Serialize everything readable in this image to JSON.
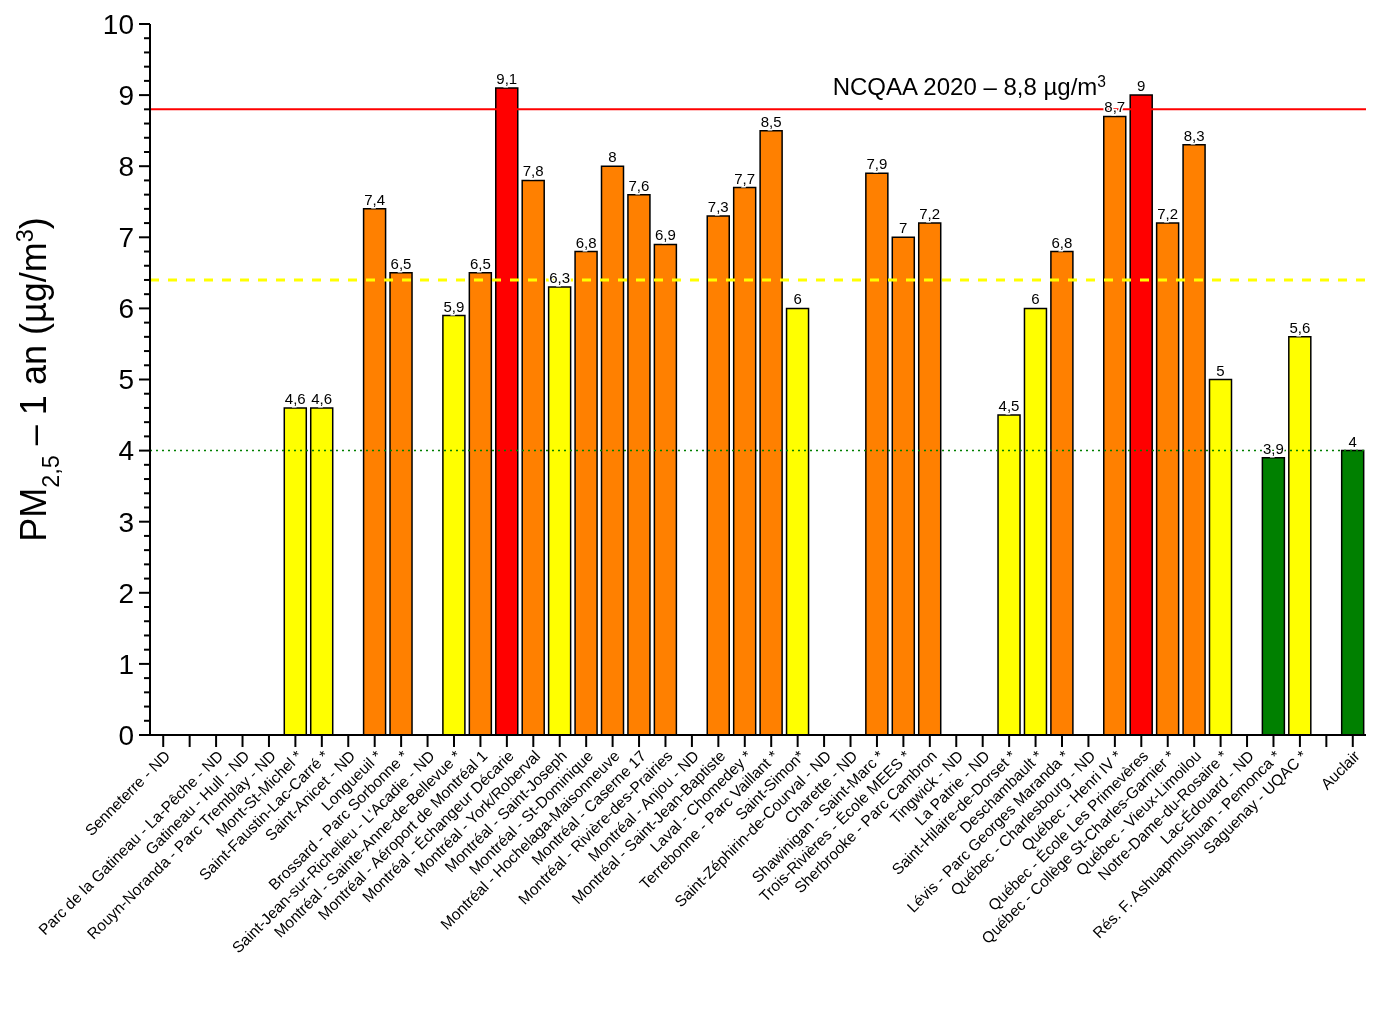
{
  "chart_data": {
    "type": "bar",
    "ylabel": "PM$_{2,5}$ – 1 an (µg/m$^{3}$)",
    "categories": [
      "Senneterre - ND",
      null,
      "Parc de la Gatineau - La-Pêche - ND",
      "Gatineau - Hull - ND",
      "Rouyn-Noranda - Parc Tremblay - ND",
      "Mont-St-Michel *",
      "Saint-Faustin-Lac-Carré *",
      "Saint-Anicet - ND",
      "Longueuil *",
      "Brossard - Parc Sorbonne *",
      "Saint-Jean-sur-Richelieu - L'Acadie - ND",
      "Montréal - Sainte-Anne-de-Bellevue *",
      "Montréal - Aéroport de Montréal 1",
      "Montréal - Échangeur Décarie",
      "Montréal - York/Roberval",
      "Montréal - Saint-Joseph",
      "Montréal - St-Dominique",
      "Montréal - Hochelaga-Maisonneuve",
      "Montréal - Caserne 17",
      "Montréal - Rivière-des-Prairies",
      "Montréal - Anjou - ND",
      "Montréal - Saint-Jean-Baptiste",
      "Laval - Chomedey *",
      "Terrebonne - Parc Vaillant *",
      "Saint-Simon*",
      "Saint-Zéphirin-de-Courval - ND",
      "Charette - ND",
      "Shawinigan - Saint-Marc *",
      "Trois-Rivières - École MEES *",
      "Sherbrooke - Parc Cambron",
      "Tingwick - ND",
      "La Patrie - ND",
      "Saint-Hilaire-de-Dorset *",
      "Deschambault *",
      "Lévis - Parc Georges Maranda *",
      "Québec - Charlesbourg - ND",
      "Québec - Henri IV *",
      "Québec - École Les Primevères",
      "Québec - Collège St-Charles-Garnier *",
      "Québec - Vieux-Limoilou",
      "Notre-Dame-du-Rosaire *",
      "Lac-Édouard - ND",
      "Rés. F. Ashuapmushuan - Pemonca *",
      "Saguenay - UQAC *",
      null,
      "Auclair"
    ],
    "values": [
      null,
      null,
      null,
      null,
      null,
      4.6,
      4.6,
      null,
      7.4,
      6.5,
      null,
      5.9,
      6.5,
      9.1,
      7.8,
      6.3,
      6.8,
      8,
      7.6,
      6.9,
      null,
      7.3,
      7.7,
      8.5,
      6,
      null,
      null,
      7.9,
      7,
      7.2,
      null,
      null,
      4.5,
      6,
      6.8,
      null,
      8.7,
      9,
      7.2,
      8.3,
      5,
      null,
      3.9,
      5.6,
      null,
      4
    ],
    "value_labels": [
      null,
      null,
      null,
      null,
      null,
      "4,6",
      "4,6",
      null,
      "7,4",
      "6,5",
      null,
      "5,9",
      "6,5",
      "9,1",
      "7,8",
      "6,3",
      "6,8",
      "8",
      "7,6",
      "6,9",
      null,
      "7,3",
      "7,7",
      "8,5",
      "6",
      null,
      null,
      "7,9",
      "7",
      "7,2",
      null,
      null,
      "4,5",
      "6",
      "6,8",
      null,
      "8,7",
      "9",
      "7,2",
      "8,3",
      "5",
      null,
      "3,9",
      "5,6",
      null,
      "4"
    ],
    "colors": [
      "#ff8000",
      "#ff8000",
      "#ff8000",
      "#ff8000",
      "#ff8000",
      "#ffff00",
      "#ffff00",
      "#ff8000",
      "#ff8000",
      "#ff8000",
      "#ff8000",
      "#ffff00",
      "#ff8000",
      "#ff0000",
      "#ff8000",
      "#ffff00",
      "#ff8000",
      "#ff8000",
      "#ff8000",
      "#ff8000",
      "#ff8000",
      "#ff8000",
      "#ff8000",
      "#ff8000",
      "#ffff00",
      "#ff8000",
      "#ff8000",
      "#ff8000",
      "#ff8000",
      "#ff8000",
      "#ff8000",
      "#ff8000",
      "#ffff00",
      "#ffff00",
      "#ff8000",
      "#ff8000",
      "#ff8000",
      "#ff0000",
      "#ff8000",
      "#ff8000",
      "#ffff00",
      "#ff8000",
      "#008000",
      "#ffff00",
      "#ff8000",
      "#008000"
    ],
    "ylim": [
      0,
      10
    ],
    "yticks": [
      0,
      {
        "value": 0.2,
        "label": null
      },
      {
        "value": 0.4,
        "label": null
      },
      {
        "value": 0.6,
        "label": null
      },
      {
        "value": 0.8,
        "label": null
      },
      1,
      {
        "value": 1.2,
        "label": null
      },
      {
        "value": 1.4,
        "label": null
      },
      {
        "value": 1.6,
        "label": null
      },
      {
        "value": 1.8,
        "label": null
      },
      2,
      {
        "value": 2.2,
        "label": null
      },
      {
        "value": 2.4,
        "label": null
      },
      {
        "value": 2.6,
        "label": null
      },
      {
        "value": 2.8,
        "label": null
      },
      3,
      {
        "value": 3.2,
        "label": null
      },
      {
        "value": 3.4,
        "label": null
      },
      {
        "value": 3.6,
        "label": null
      },
      {
        "value": 3.8,
        "label": null
      },
      4,
      {
        "value": 4.2,
        "label": null
      },
      {
        "value": 4.4,
        "label": null
      },
      {
        "value": 4.6,
        "label": null
      },
      {
        "value": 4.8,
        "label": null
      },
      5,
      {
        "value": 5.2,
        "label": null
      },
      {
        "value": 5.4,
        "label": null
      },
      {
        "value": 5.6,
        "label": null
      },
      {
        "value": 5.8,
        "label": null
      },
      6,
      {
        "value": 6.2,
        "label": null
      },
      {
        "value": 6.4,
        "label": null
      },
      {
        "value": 6.6,
        "label": null
      },
      {
        "value": 6.8,
        "label": null
      },
      7,
      {
        "value": 7.2,
        "label": null
      },
      {
        "value": 7.4,
        "label": null
      },
      {
        "value": 7.6,
        "label": null
      },
      {
        "value": 7.8,
        "label": null
      },
      8,
      {
        "value": 8.2,
        "label": null
      },
      {
        "value": 8.4,
        "label": null
      },
      {
        "value": 8.6,
        "label": null
      },
      {
        "value": 8.8,
        "label": null
      },
      9,
      {
        "value": 9.2,
        "label": null
      },
      {
        "value": 9.4,
        "label": null
      },
      {
        "value": 9.6,
        "label": null
      },
      {
        "value": 9.8,
        "label": null
      },
      10
    ],
    "ref_lines": [
      {
        "axis": "y",
        "value": 8.8,
        "label": "NCQAA 2020 – 8,8 µg/m$^{3}$",
        "color": "#ff0000",
        "line_style": "solid"
      },
      {
        "axis": "y",
        "value": 6.4,
        "color": "#ffff00",
        "line_style": "dashed"
      },
      {
        "axis": "y",
        "value": 4,
        "color": "#008000",
        "line_style": "dotted"
      }
    ],
    "grid": false,
    "legend": false
  }
}
